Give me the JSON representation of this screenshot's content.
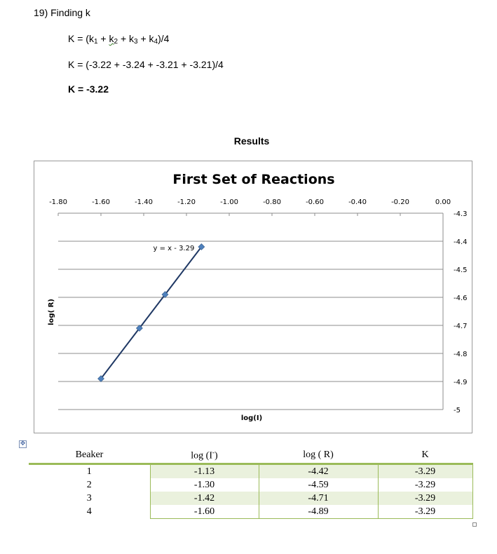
{
  "heading": "19) Finding k",
  "equation1": {
    "prefix": "K = (k",
    "sub1": "1",
    "plus_k": " + ",
    "k2_letter": "k",
    "sub2": "2",
    "mid": " + k",
    "sub3": "3",
    "mid2": " + k",
    "sub4": "4",
    "suffix": ")/4"
  },
  "equation2": "K = (-3.22 + -3.24 + -3.21 + -3.21)/4",
  "equation3": "K = -3.22",
  "results_title": "Results",
  "chart_data": {
    "type": "scatter",
    "title": "First Set of Reactions",
    "xlabel": "log(I)",
    "ylabel": "log( R)",
    "xlim": [
      -1.8,
      0.0
    ],
    "ylim": [
      -5.0,
      -4.3
    ],
    "x_ticks": [
      "-1.80",
      "-1.60",
      "-1.40",
      "-1.20",
      "-1.00",
      "-0.80",
      "-0.60",
      "-0.40",
      "-0.20",
      "0.00"
    ],
    "y_ticks": [
      "-4.3",
      "-4.4",
      "-4.5",
      "-4.6",
      "-4.7",
      "-4.8",
      "-4.9",
      "-5"
    ],
    "x_axis_position": "top",
    "y_axis_position": "right",
    "grid": "horizontal",
    "legend": "none",
    "series": [
      {
        "x": [
          -1.13,
          -1.3,
          -1.42,
          -1.6
        ],
        "y": [
          -4.42,
          -4.59,
          -4.71,
          -4.89
        ],
        "color": "#4f81bd",
        "marker": "diamond"
      }
    ],
    "trendline": {
      "label": "y = x - 3.29",
      "slope": 1,
      "intercept": -3.29,
      "color": "#1f3864"
    }
  },
  "table": {
    "headers": {
      "beaker": "Beaker",
      "logI_pre": "log (I",
      "logI_sup": "-",
      "logI_post": ")",
      "logR": "log ( R)",
      "K": "K"
    },
    "rows": [
      [
        "1",
        "-1.13",
        "-4.42",
        "-3.29"
      ],
      [
        "2",
        "-1.30",
        "-4.59",
        "-3.29"
      ],
      [
        "3",
        "-1.42",
        "-4.71",
        "-3.29"
      ],
      [
        "4",
        "-1.60",
        "-4.89",
        "-3.29"
      ]
    ]
  },
  "icons": {
    "move_handle": "move-arrows-icon",
    "resize_handle": "resize-handle-icon"
  }
}
